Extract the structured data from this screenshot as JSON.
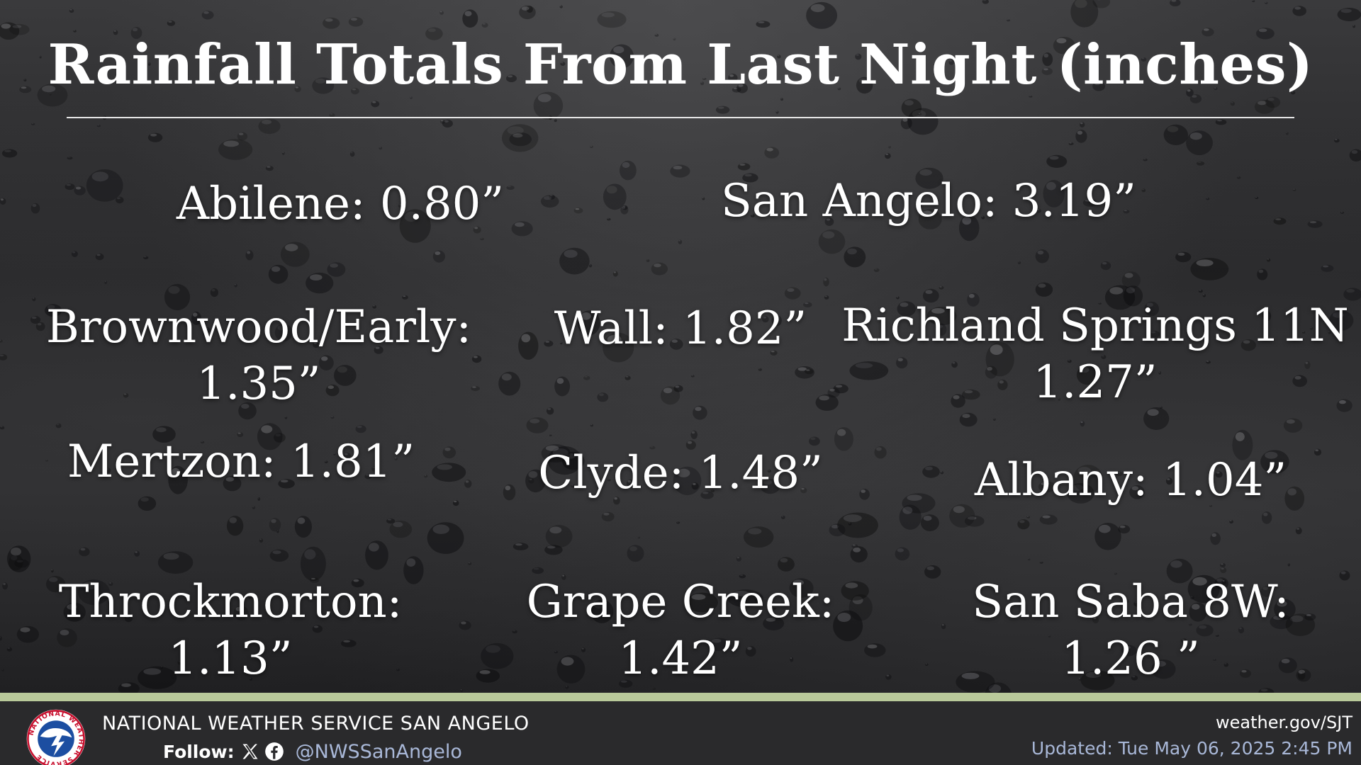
{
  "title": "Rainfall Totals From Last Night (inches)",
  "cities": [
    {
      "lines": [
        "Abilene: 0.80”"
      ]
    },
    {
      "lines": [
        "San Angelo: 3.19”"
      ]
    },
    {
      "lines": [
        "Brownwood/Early:",
        "1.35”"
      ]
    },
    {
      "lines": [
        "Wall: 1.82”"
      ]
    },
    {
      "lines": [
        "Richland Springs 11N",
        "1.27”"
      ]
    },
    {
      "lines": [
        "Mertzon: 1.81”"
      ]
    },
    {
      "lines": [
        "Clyde: 1.48”"
      ]
    },
    {
      "lines": [
        "Albany: 1.04”"
      ]
    },
    {
      "lines": [
        "Throckmorton:",
        "1.13”"
      ]
    },
    {
      "lines": [
        "Grape Creek:",
        "1.42”"
      ]
    },
    {
      "lines": [
        "San Saba 8W:",
        "1.26 ”"
      ]
    }
  ],
  "footer": {
    "organization": "NATIONAL WEATHER SERVICE SAN ANGELO",
    "follow_label": "Follow:",
    "social_icons": [
      "x-icon",
      "facebook-icon"
    ],
    "handle": "@NWSSanAngelo",
    "website": "weather.gov/SJT",
    "updated": "Updated: Tue May 06, 2025 2:45 PM",
    "logo": "nws-logo",
    "logo_text": "NATIONAL WEATHER SERVICE"
  },
  "colors": {
    "text": "#ffffff",
    "footer_bg": "#2a2a2c",
    "footer_accent": "#b9c99a",
    "link": "#a9b8d8"
  }
}
